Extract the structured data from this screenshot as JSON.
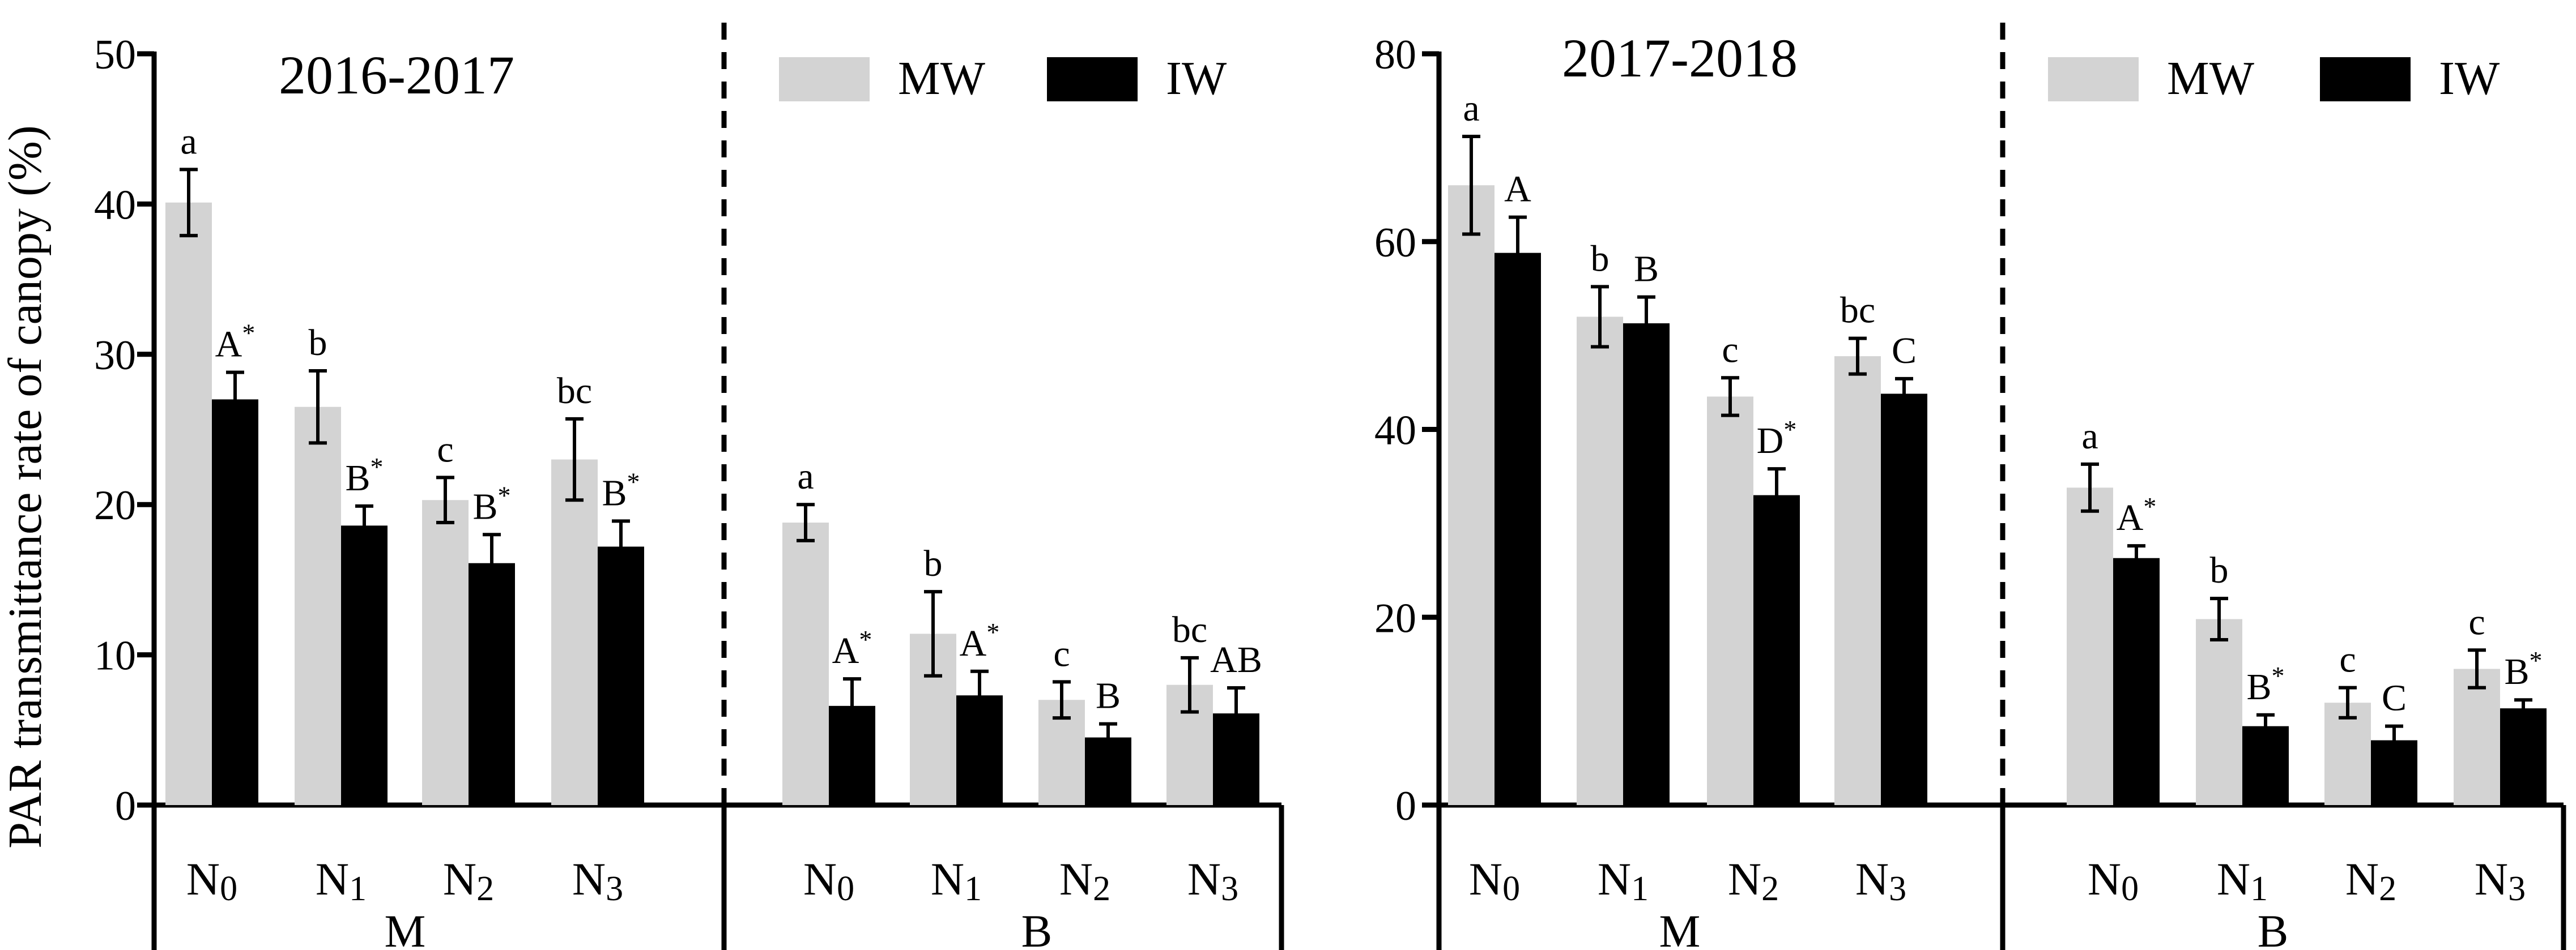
{
  "figure": {
    "ylabel": "PAR transmittance rate of canopy (%)",
    "legend": {
      "mw_label": "MW",
      "iw_label": "IW",
      "mw_color": "#d3d3d3",
      "iw_color": "#000000"
    }
  },
  "chart_data": [
    {
      "type": "bar",
      "title": "2016-2017",
      "ylabel": "PAR transmittance rate of canopy (%)",
      "ylim": [
        0,
        50
      ],
      "yticks": [
        "0",
        "10",
        "20",
        "30",
        "40",
        "50"
      ],
      "legend_position": "top-right",
      "groups": [
        "M",
        "B"
      ],
      "categories": [
        "N0",
        "N1",
        "N2",
        "N3"
      ],
      "series": [
        {
          "name": "MW",
          "color": "#d3d3d3",
          "values": {
            "M": [
              40.1,
              26.5,
              20.3,
              23.0
            ],
            "B": [
              18.8,
              11.4,
              7.0,
              8.0
            ]
          },
          "errors": {
            "M": [
              2.2,
              2.4,
              1.5,
              2.7
            ],
            "B": [
              1.2,
              2.8,
              1.2,
              1.8
            ]
          },
          "labels": {
            "M": [
              "a",
              "b",
              "c",
              "bc"
            ],
            "B": [
              "a",
              "b",
              "c",
              "bc"
            ]
          }
        },
        {
          "name": "IW",
          "color": "#000000",
          "values": {
            "M": [
              27.0,
              18.6,
              16.1,
              17.2
            ],
            "B": [
              6.6,
              7.3,
              4.5,
              6.1
            ]
          },
          "errors": {
            "M": [
              1.8,
              1.3,
              1.9,
              1.7
            ],
            "B": [
              1.8,
              1.6,
              0.9,
              1.7
            ]
          },
          "labels": {
            "M": [
              "A*",
              "B*",
              "B*",
              "B*"
            ],
            "B": [
              "A*",
              "A*",
              "B",
              "AB"
            ]
          }
        }
      ]
    },
    {
      "type": "bar",
      "title": "2017-2018",
      "ylim": [
        0,
        80
      ],
      "yticks": [
        "0",
        "20",
        "40",
        "60",
        "80"
      ],
      "legend_position": "top-right",
      "groups": [
        "M",
        "B"
      ],
      "categories": [
        "N0",
        "N1",
        "N2",
        "N3"
      ],
      "series": [
        {
          "name": "MW",
          "color": "#d3d3d3",
          "values": {
            "M": [
              66.0,
              52.0,
              43.5,
              47.8
            ],
            "B": [
              33.8,
              19.8,
              10.9,
              14.5
            ]
          },
          "errors": {
            "M": [
              5.2,
              3.2,
              2.0,
              1.9
            ],
            "B": [
              2.5,
              2.2,
              1.6,
              2.0
            ]
          },
          "labels": {
            "M": [
              "a",
              "b",
              "c",
              "bc"
            ],
            "B": [
              "a",
              "b",
              "c",
              "c"
            ]
          }
        },
        {
          "name": "IW",
          "color": "#000000",
          "values": {
            "M": [
              58.8,
              51.3,
              33.0,
              43.8
            ],
            "B": [
              26.3,
              8.4,
              6.9,
              10.3
            ]
          },
          "errors": {
            "M": [
              3.8,
              2.8,
              2.8,
              1.6
            ],
            "B": [
              1.3,
              1.2,
              1.5,
              0.9
            ]
          },
          "labels": {
            "M": [
              "A",
              "B",
              "D*",
              "C"
            ],
            "B": [
              "A*",
              "B*",
              "C",
              "B*"
            ]
          }
        }
      ]
    }
  ]
}
